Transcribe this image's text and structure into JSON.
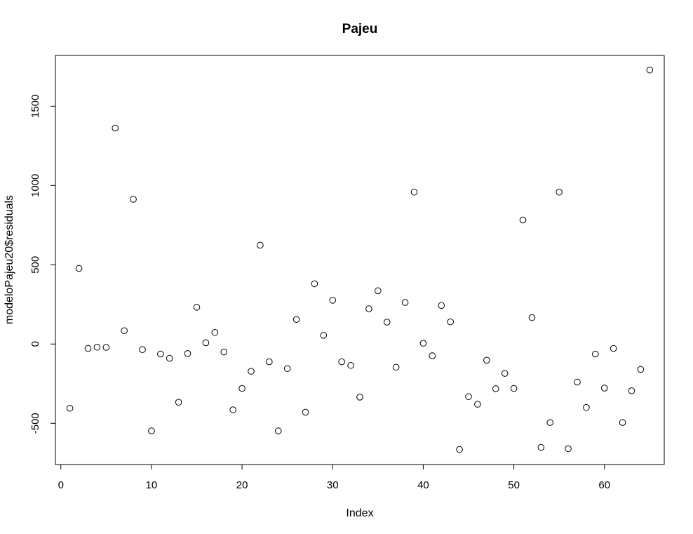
{
  "chart_data": {
    "type": "scatter",
    "title": "Pajeu",
    "xlabel": "Index",
    "ylabel": "modeloPajeu20$residuals",
    "xlim": [
      -0.6,
      66.6
    ],
    "ylim": [
      -760,
      1820
    ],
    "xticks": [
      0,
      10,
      20,
      30,
      40,
      50,
      60
    ],
    "yticks": [
      -500,
      0,
      500,
      1000,
      1500
    ],
    "grid": false,
    "legend": "none",
    "marker": "open-circle",
    "color": "#000000",
    "x": [
      1,
      2,
      3,
      4,
      5,
      6,
      7,
      8,
      9,
      10,
      11,
      12,
      13,
      14,
      15,
      16,
      17,
      18,
      19,
      20,
      21,
      22,
      23,
      24,
      25,
      26,
      27,
      28,
      29,
      30,
      31,
      32,
      33,
      34,
      35,
      36,
      37,
      38,
      39,
      40,
      41,
      42,
      43,
      44,
      45,
      46,
      47,
      48,
      49,
      50,
      51,
      52,
      53,
      54,
      55,
      56,
      57,
      58,
      59,
      60,
      61,
      62,
      63,
      64,
      65
    ],
    "y": [
      -405,
      477,
      -28,
      -20,
      -21,
      1362,
      84,
      913,
      -35,
      -548,
      -63,
      -90,
      -367,
      -60,
      232,
      8,
      73,
      -50,
      -415,
      -280,
      -172,
      623,
      -112,
      -548,
      -155,
      155,
      -430,
      380,
      55,
      276,
      -112,
      -135,
      -335,
      222,
      336,
      138,
      -146,
      262,
      958,
      5,
      -74,
      243,
      140,
      -665,
      -332,
      -380,
      -102,
      -282,
      -185,
      -280,
      782,
      167,
      -652,
      -495,
      958,
      -660,
      -240,
      -400,
      -63,
      -278,
      -28,
      -495,
      -295,
      -160,
      1728
    ]
  }
}
